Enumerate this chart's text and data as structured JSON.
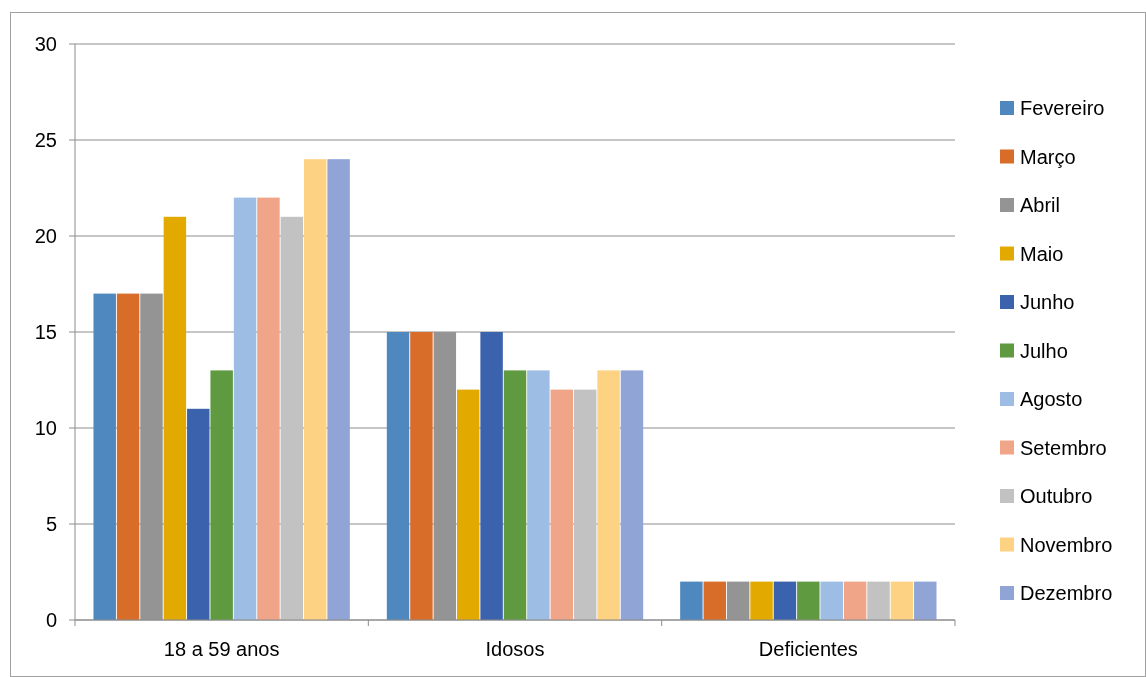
{
  "chart_data": {
    "type": "bar",
    "categories": [
      "18 a 59 anos",
      "Idosos",
      "Deficientes"
    ],
    "series": [
      {
        "name": "Fevereiro",
        "color": "#4f88bf",
        "values": [
          17,
          15,
          2
        ]
      },
      {
        "name": "Março",
        "color": "#d86d2a",
        "values": [
          17,
          15,
          2
        ]
      },
      {
        "name": "Abril",
        "color": "#949494",
        "values": [
          17,
          15,
          2
        ]
      },
      {
        "name": "Maio",
        "color": "#e2aa00",
        "values": [
          21,
          12,
          2
        ]
      },
      {
        "name": "Junho",
        "color": "#3b63ad",
        "values": [
          11,
          15,
          2
        ]
      },
      {
        "name": "Julho",
        "color": "#5f9a41",
        "values": [
          13,
          13,
          2
        ]
      },
      {
        "name": "Agosto",
        "color": "#9dbde4",
        "values": [
          22,
          13,
          2
        ]
      },
      {
        "name": "Setembro",
        "color": "#f1a588",
        "values": [
          22,
          12,
          2
        ]
      },
      {
        "name": "Outubro",
        "color": "#c2c2c2",
        "values": [
          21,
          12,
          2
        ]
      },
      {
        "name": "Novembro",
        "color": "#fed283",
        "values": [
          24,
          13,
          2
        ]
      },
      {
        "name": "Dezembro",
        "color": "#90a5d6",
        "values": [
          24,
          13,
          2
        ]
      }
    ],
    "ylim": [
      0,
      30
    ],
    "yticks": [
      0,
      5,
      10,
      15,
      20,
      25,
      30
    ],
    "grid": "y",
    "legend": "right"
  }
}
